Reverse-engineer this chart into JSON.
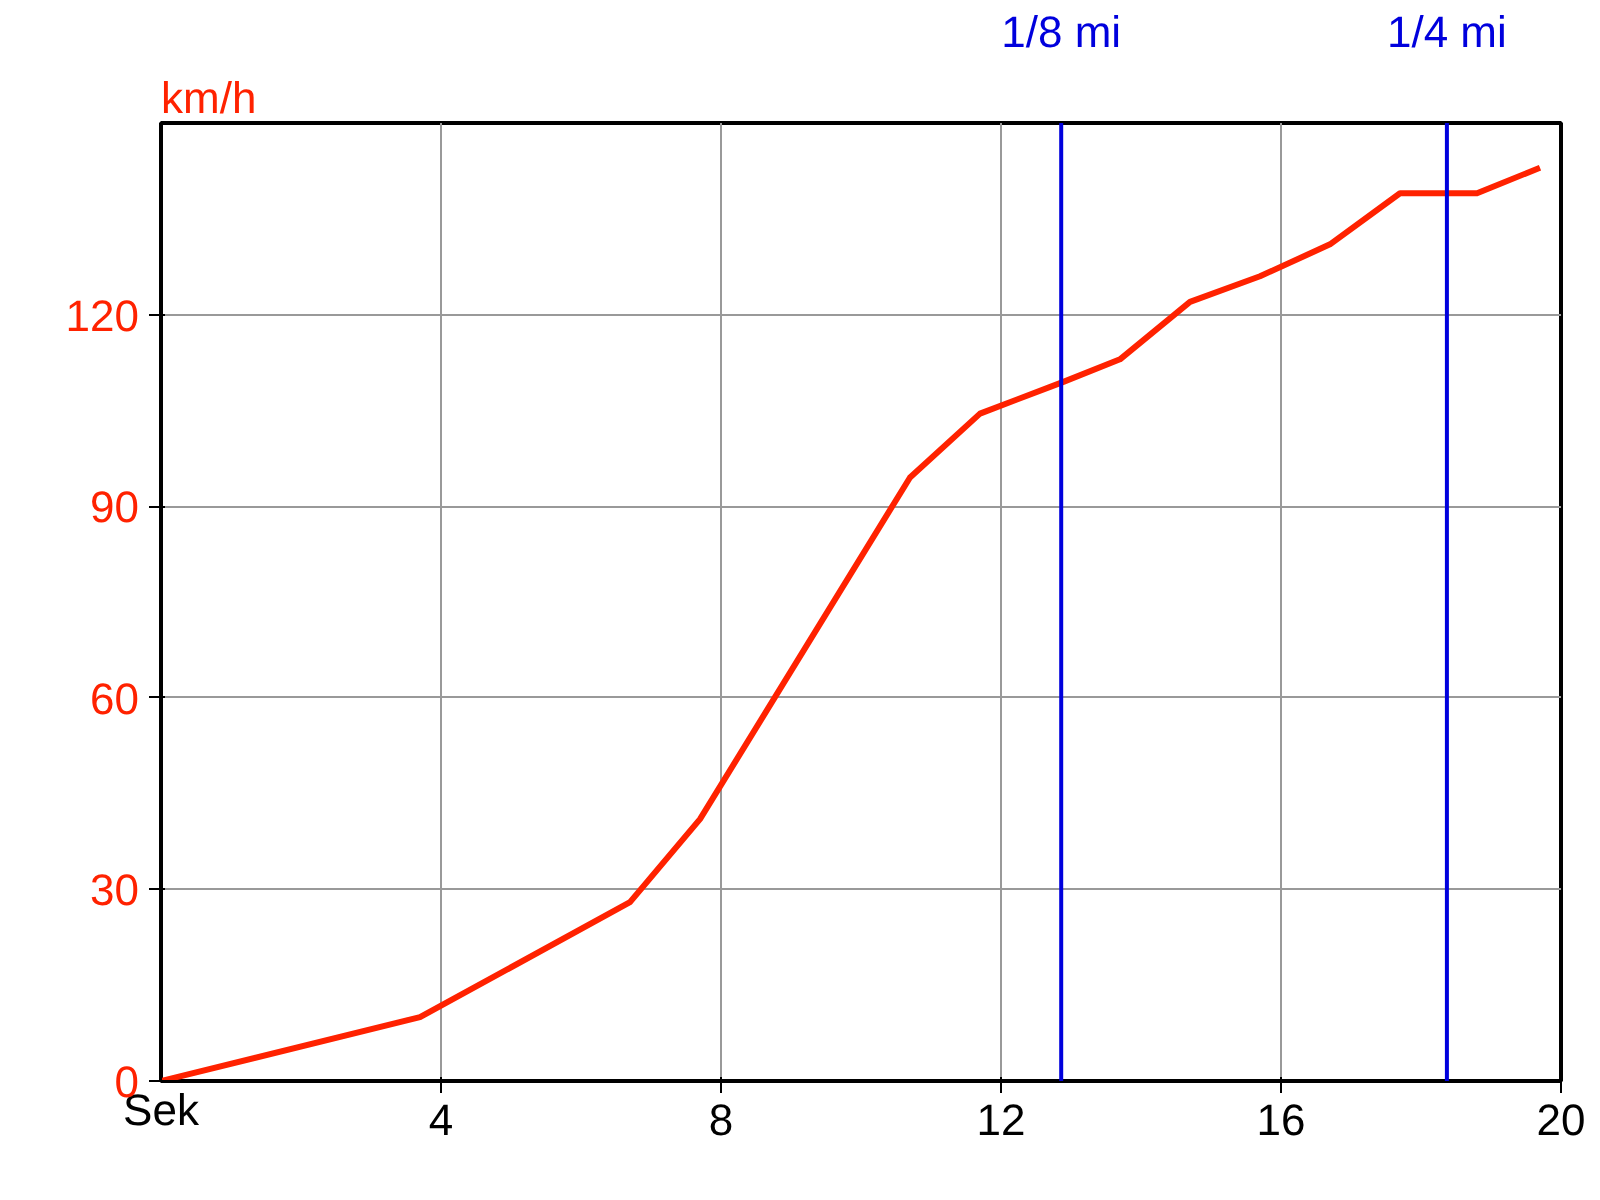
{
  "chart_data": {
    "type": "line",
    "xlabel": "Sek",
    "ylabel": "km/h",
    "x": [
      0,
      3.7,
      6.7,
      7.7,
      10.7,
      11.7,
      12.9,
      13.7,
      14.7,
      15.7,
      16.7,
      17.7,
      18.8,
      19.7
    ],
    "series": [
      {
        "color": "#ff2200",
        "values": [
          0,
          10,
          28,
          41,
          94.5,
          104.5,
          109.5,
          113,
          122,
          126,
          131,
          139,
          139,
          143
        ]
      }
    ],
    "xlim": [
      0,
      20
    ],
    "xticks": [
      4,
      8,
      12,
      16,
      20
    ],
    "ylim": [
      0,
      150
    ],
    "yticks": [
      0,
      30,
      60,
      90,
      120
    ],
    "ref_lines": [
      {
        "axis": "x",
        "value": 12.86,
        "label": "1/8 mi",
        "color": "#0000dd"
      },
      {
        "axis": "x",
        "value": 18.37,
        "label": "1/4 mi",
        "color": "#0000dd"
      }
    ],
    "grid": true,
    "marker": "none",
    "line_style": "solid"
  }
}
